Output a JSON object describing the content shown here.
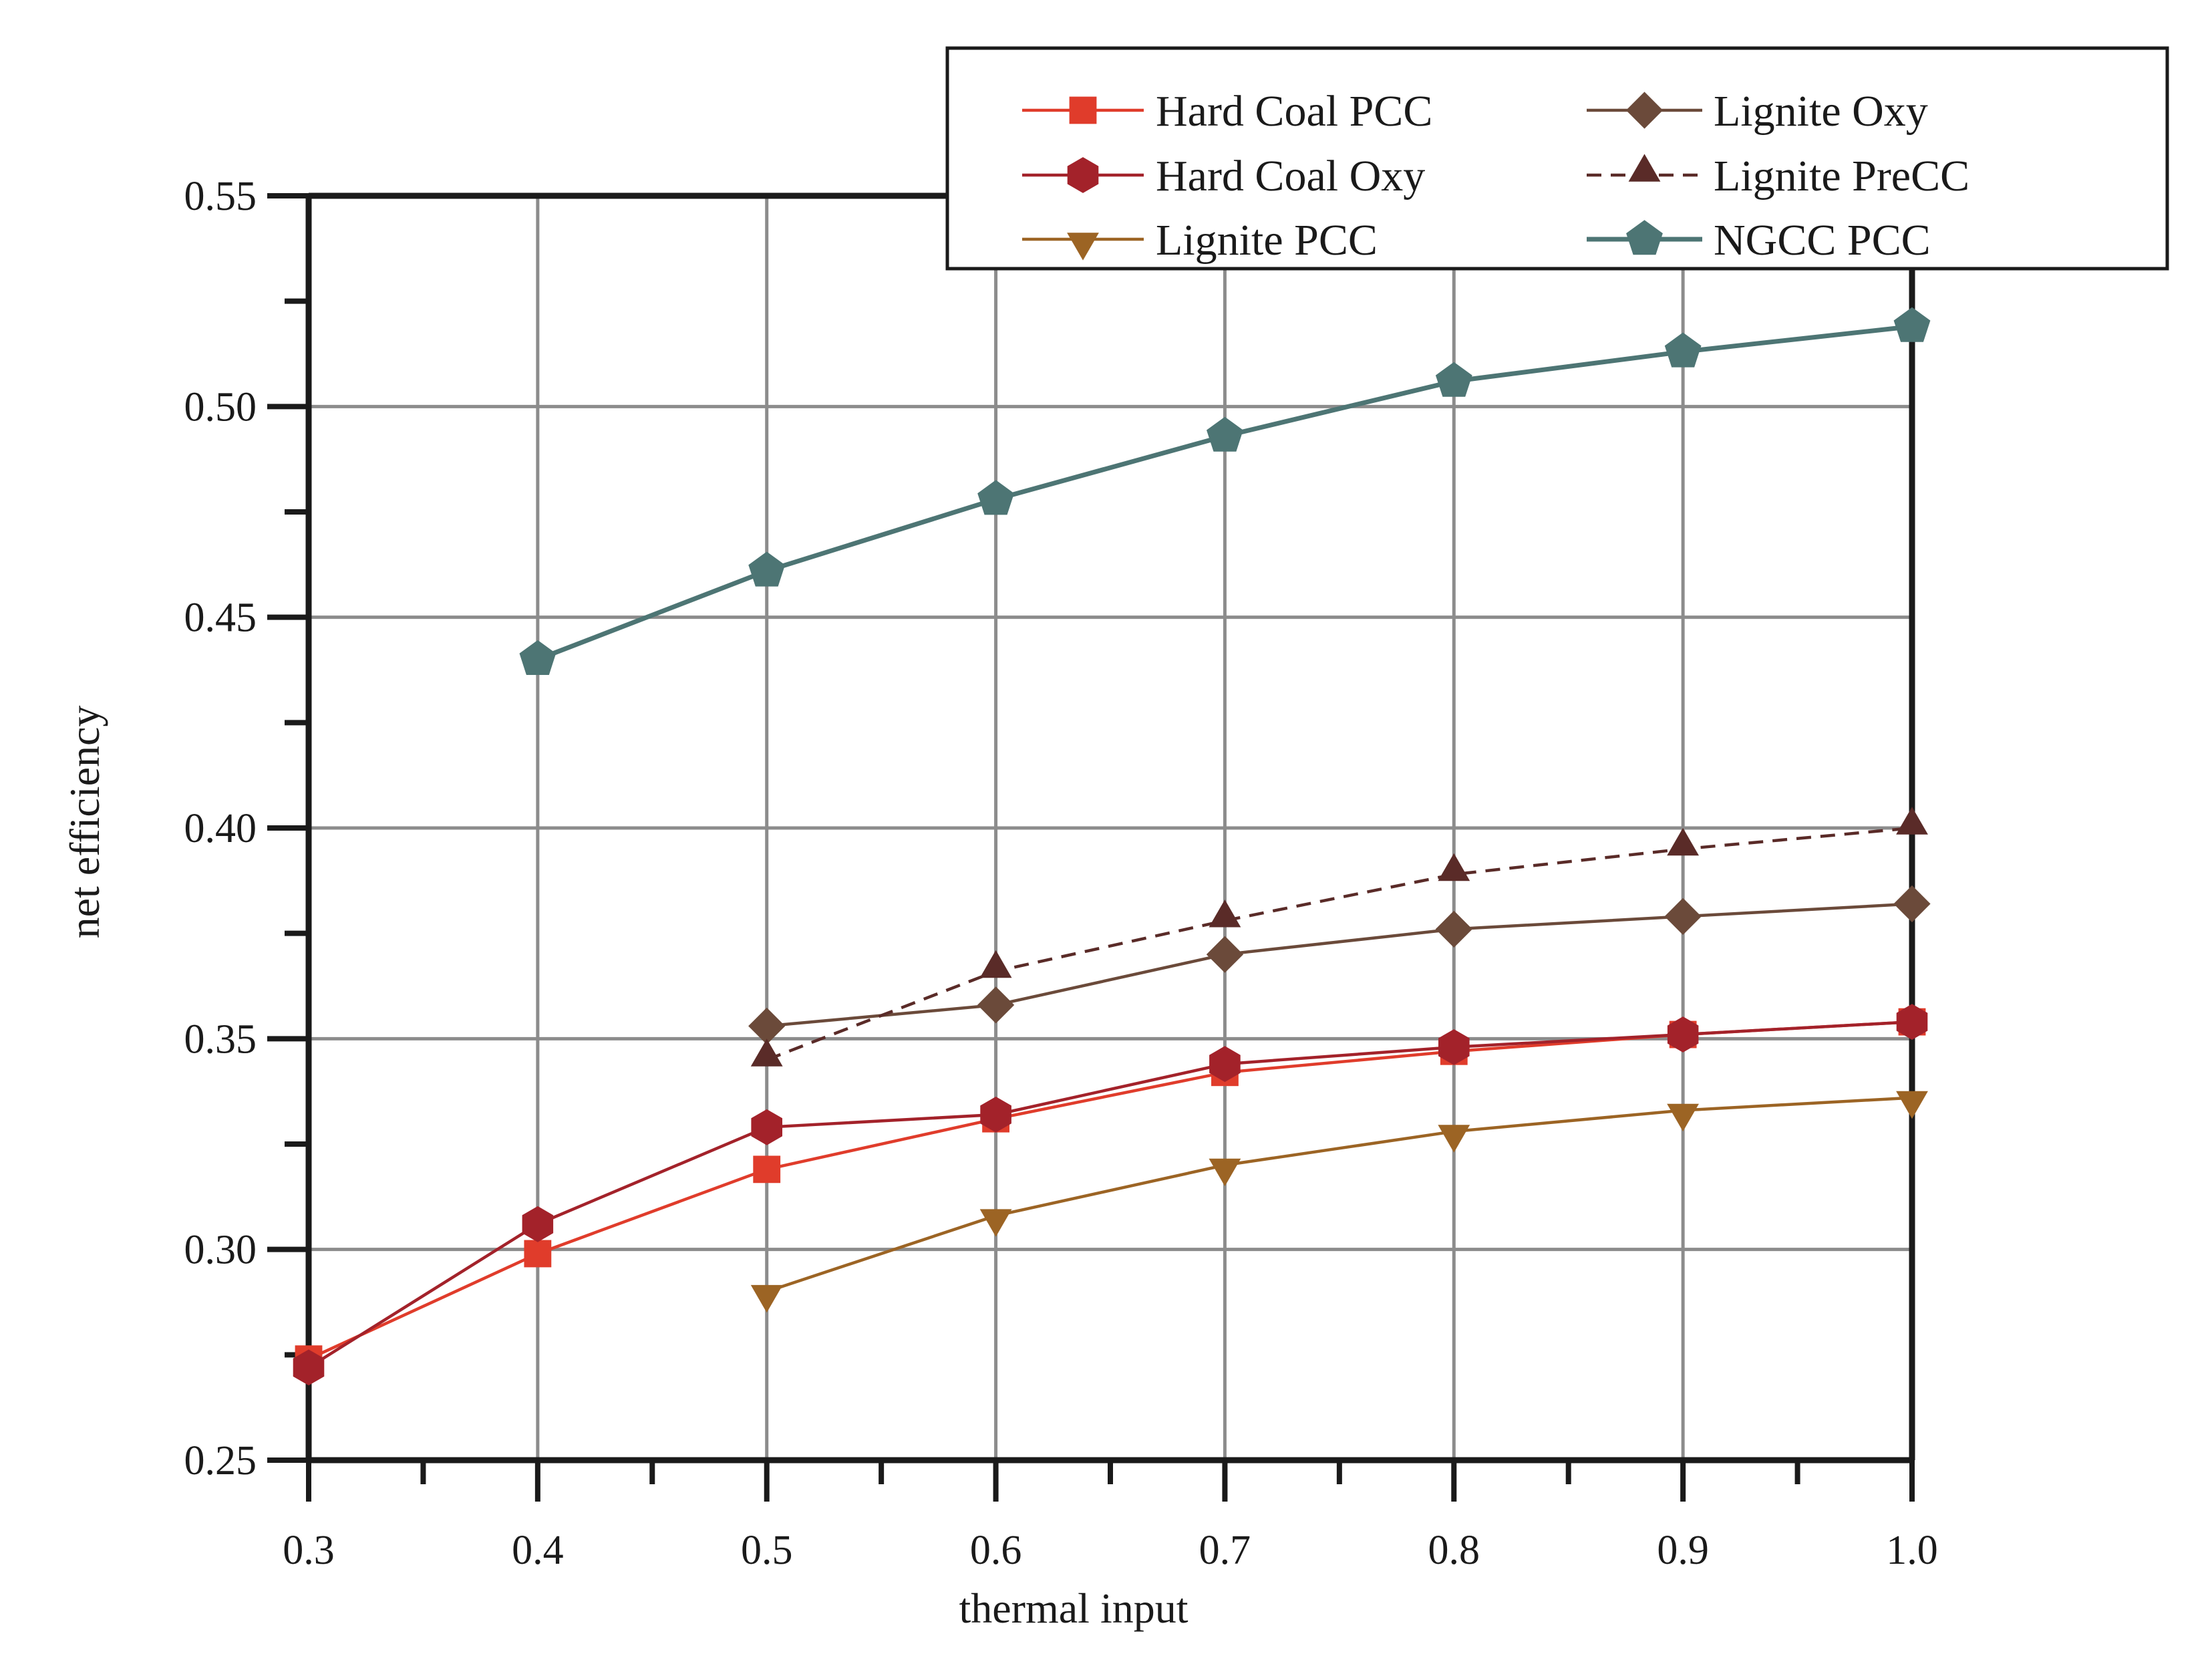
{
  "chart_data": {
    "type": "line",
    "title": "",
    "xlabel": "thermal input",
    "ylabel": "net efficiency",
    "xlim": [
      0.3,
      1.0
    ],
    "ylim": [
      0.25,
      0.55
    ],
    "x_ticks": [
      "0.3",
      "0.4",
      "0.5",
      "0.6",
      "0.7",
      "0.8",
      "0.9",
      "1.0"
    ],
    "y_ticks": [
      "0.25",
      "0.30",
      "0.35",
      "0.40",
      "0.45",
      "0.50",
      "0.55"
    ],
    "grid": true,
    "legend_position": "top-right",
    "series": [
      {
        "name": "Hard Coal PCC",
        "color": "#e03c2b",
        "marker": "square",
        "line_style": "solid",
        "x": [
          0.3,
          0.4,
          0.5,
          0.6,
          0.7,
          0.8,
          0.9,
          1.0
        ],
        "values": [
          0.274,
          0.299,
          0.319,
          0.331,
          0.342,
          0.347,
          0.351,
          0.354
        ]
      },
      {
        "name": "Hard Coal Oxy",
        "color": "#a3222a",
        "marker": "hexagon",
        "line_style": "solid",
        "x": [
          0.3,
          0.4,
          0.5,
          0.6,
          0.7,
          0.8,
          0.9,
          1.0
        ],
        "values": [
          0.272,
          0.306,
          0.329,
          0.332,
          0.344,
          0.348,
          0.351,
          0.354
        ]
      },
      {
        "name": "Lignite PCC",
        "color": "#9c6424",
        "marker": "triangle-down",
        "line_style": "solid",
        "x": [
          0.5,
          0.6,
          0.7,
          0.8,
          0.9,
          1.0
        ],
        "values": [
          0.29,
          0.308,
          0.32,
          0.328,
          0.333,
          0.336
        ]
      },
      {
        "name": "Lignite Oxy",
        "color": "#6b4a3a",
        "marker": "diamond",
        "line_style": "solid",
        "x": [
          0.5,
          0.6,
          0.7,
          0.8,
          0.9,
          1.0
        ],
        "values": [
          0.353,
          0.358,
          0.37,
          0.376,
          0.379,
          0.382
        ]
      },
      {
        "name": "Lignite PreCC",
        "color": "#5a2b28",
        "marker": "triangle-up",
        "line_style": "dashed",
        "x": [
          0.5,
          0.6,
          0.7,
          0.8,
          0.9,
          1.0
        ],
        "values": [
          0.345,
          0.366,
          0.378,
          0.389,
          0.395,
          0.4
        ]
      },
      {
        "name": "NGCC PCC",
        "color": "#4d7574",
        "marker": "pentagon",
        "line_style": "solid",
        "x": [
          0.4,
          0.5,
          0.6,
          0.7,
          0.8,
          0.9,
          1.0
        ],
        "values": [
          0.44,
          0.461,
          0.478,
          0.493,
          0.506,
          0.513,
          0.519
        ]
      }
    ]
  }
}
